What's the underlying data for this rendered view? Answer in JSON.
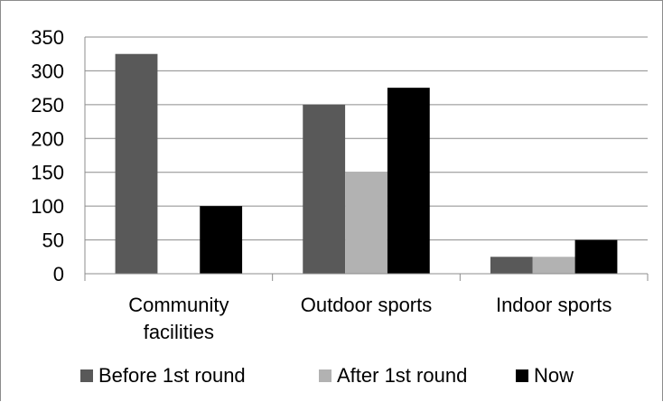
{
  "chart_data": {
    "type": "bar",
    "title": "",
    "xlabel": "",
    "ylabel": "",
    "categories": [
      [
        "Community",
        "facilities"
      ],
      [
        "Outdoor sports"
      ],
      [
        "Indoor sports"
      ]
    ],
    "series": [
      {
        "name": "Before 1st round",
        "color": "#595959",
        "values": [
          325,
          250,
          25
        ]
      },
      {
        "name": "After 1st round",
        "color": "#b2b2b2",
        "values": [
          0,
          150,
          25
        ]
      },
      {
        "name": "Now",
        "color": "#000000",
        "values": [
          100,
          275,
          50
        ]
      }
    ],
    "ylim": [
      0,
      350
    ],
    "yticks": [
      0,
      50,
      100,
      150,
      200,
      250,
      300,
      350
    ],
    "grid": true,
    "legend_position": "bottom"
  }
}
